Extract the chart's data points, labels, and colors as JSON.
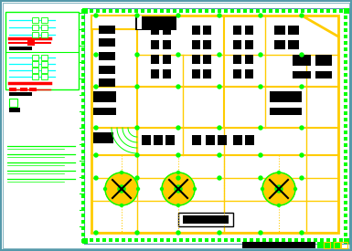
{
  "bg_color": "#ffffff",
  "outer_border_color": "#5599aa",
  "yellow": "#ffcc00",
  "green": "#00ff00",
  "cyan": "#00ffff",
  "red": "#ff0000",
  "black": "#000000",
  "white": "#ffffff",
  "fig_width": 3.85,
  "fig_height": 2.75,
  "dpi": 100
}
